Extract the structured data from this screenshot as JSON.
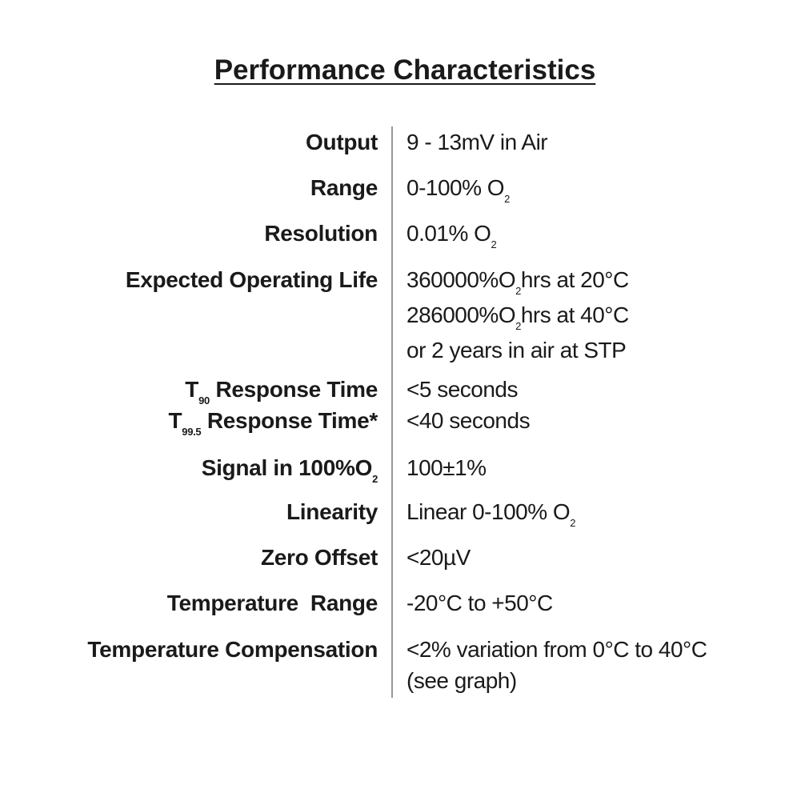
{
  "title": "Performance Characteristics",
  "rows": [
    {
      "label": [
        "Output"
      ],
      "value": [
        [
          "9 - 13mV in Air"
        ]
      ]
    },
    {
      "label": [
        "Range"
      ],
      "value": [
        [
          "0-100% O",
          "2"
        ]
      ]
    },
    {
      "label": [
        "Resolution"
      ],
      "value": [
        [
          "0.01% O",
          "2"
        ]
      ]
    },
    {
      "label": [
        "Expected Operating Life"
      ],
      "value": [
        [
          "360000%O",
          "2",
          "hrs at 20°C"
        ],
        [
          "286000%O",
          "2",
          "hrs at 40°C"
        ],
        [
          "or 2 years in air at STP"
        ]
      ]
    },
    {
      "label": [
        "T",
        "90",
        " Response Time"
      ],
      "value": [
        [
          "<5 seconds"
        ]
      ]
    },
    {
      "label": [
        "T",
        "99.5",
        " Response Time*"
      ],
      "value": [
        [
          "<40 seconds"
        ]
      ]
    },
    {
      "label": [
        "Signal in 100%O",
        "2"
      ],
      "value": [
        [
          "100±1%"
        ]
      ]
    },
    {
      "label": [
        "Linearity"
      ],
      "value": [
        [
          "Linear 0-100% O",
          "2"
        ]
      ]
    },
    {
      "label": [
        "Zero Offset"
      ],
      "value": [
        [
          "<20µV"
        ]
      ]
    },
    {
      "label": [
        "Temperature  Range"
      ],
      "value": [
        [
          "-20°C to +50°C"
        ]
      ]
    },
    {
      "label": [
        "Temperature Compensation"
      ],
      "value": [
        [
          "<2% variation from 0°C to 40°C"
        ],
        [
          "(see graph)"
        ]
      ]
    }
  ]
}
